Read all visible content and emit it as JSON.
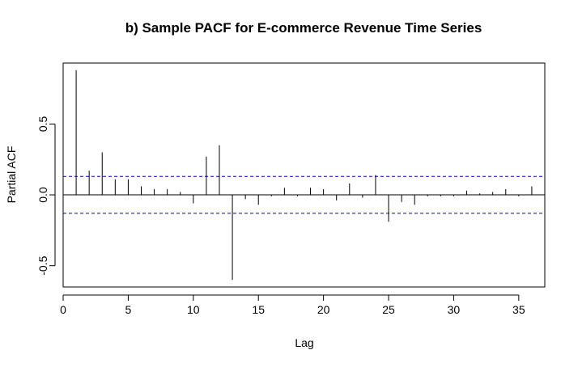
{
  "chart_data": {
    "type": "bar",
    "title": "b) Sample PACF for E-commerce Revenue Time Series",
    "xlabel": "Lag",
    "ylabel": "Partial ACF",
    "xlim": [
      0,
      37
    ],
    "ylim": [
      -0.65,
      0.93
    ],
    "x_ticks": [
      0,
      5,
      10,
      15,
      20,
      25,
      30,
      35
    ],
    "y_ticks": [
      -0.5,
      0.0,
      0.5
    ],
    "y_tick_labels": [
      "-0.5",
      "0.0",
      "0.5"
    ],
    "confidence_bound": 0.13,
    "grid": false,
    "colors": {
      "spike": "#000000",
      "bound": "#0000cc",
      "zero": "#000000"
    },
    "x": [
      1,
      2,
      3,
      4,
      5,
      6,
      7,
      8,
      9,
      10,
      11,
      12,
      13,
      14,
      15,
      16,
      17,
      18,
      19,
      20,
      21,
      22,
      23,
      24,
      25,
      26,
      27,
      28,
      29,
      30,
      31,
      32,
      33,
      34,
      35,
      36
    ],
    "values": [
      0.88,
      0.17,
      0.3,
      0.11,
      0.11,
      0.06,
      0.04,
      0.04,
      0.02,
      -0.06,
      0.27,
      0.35,
      -0.6,
      -0.03,
      -0.07,
      -0.01,
      0.05,
      -0.01,
      0.05,
      0.04,
      -0.04,
      0.08,
      -0.02,
      0.14,
      -0.19,
      -0.05,
      -0.07,
      -0.01,
      -0.01,
      -0.01,
      0.03,
      0.01,
      0.02,
      0.04,
      -0.01,
      0.06
    ]
  }
}
